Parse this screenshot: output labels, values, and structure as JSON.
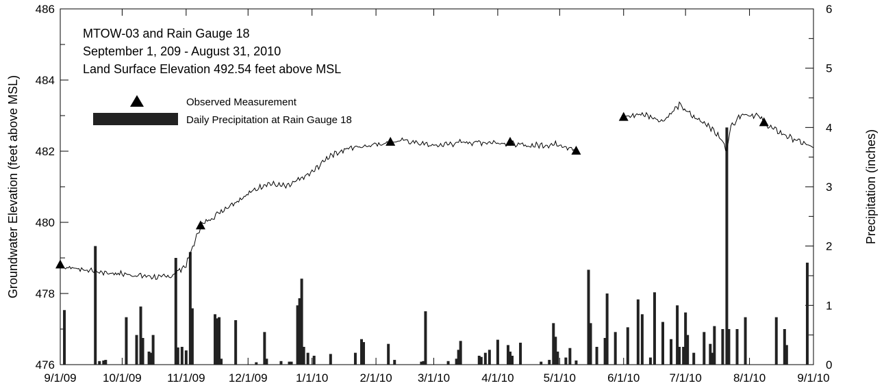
{
  "chart_data": {
    "type": "line",
    "annotations": [
      "MTOW-03 and Rain Gauge 18",
      "September 1, 209 - August 31, 2010",
      "Land Surface Elevation 492.54 feet above MSL"
    ],
    "ylabel": "Groundwater Elevation (feet above MSL)",
    "y2label": "Precipitation (inches)",
    "x_range": [
      "2009-09-01",
      "2010-09-01"
    ],
    "ylim": [
      476,
      486
    ],
    "y2lim": [
      0,
      6
    ],
    "grid": false,
    "legend_position": "top-left",
    "x_tick_labels": [
      "9/1/09",
      "10/1/09",
      "11/1/09",
      "12/1/09",
      "1/1/10",
      "2/1/10",
      "3/1/10",
      "4/1/10",
      "5/1/10",
      "6/1/10",
      "7/1/10",
      "8/1/10",
      "9/1/10"
    ],
    "y_tick_labels": [
      "476",
      "478",
      "480",
      "482",
      "484",
      "486"
    ],
    "y2_tick_labels": [
      "0",
      "1",
      "2",
      "3",
      "4",
      "5",
      "6"
    ],
    "legend": [
      {
        "label": "Observed Measurement",
        "marker": "triangle"
      },
      {
        "label": "Daily Precipitation at Rain Gauge 18",
        "marker": "bar"
      }
    ],
    "series": [
      {
        "name": "Observed Measurement",
        "type": "scatter",
        "points": [
          {
            "x": "2009-09-01",
            "y": 478.8
          },
          {
            "x": "2009-11-08",
            "y": 479.9
          },
          {
            "x": "2010-02-08",
            "y": 482.25
          },
          {
            "x": "2010-04-07",
            "y": 482.25
          },
          {
            "x": "2010-05-09",
            "y": 482.0
          },
          {
            "x": "2010-06-01",
            "y": 482.95
          },
          {
            "x": "2010-08-08",
            "y": 482.8
          }
        ]
      },
      {
        "name": "Groundwater Elevation",
        "type": "line",
        "segments": [
          [
            {
              "x": "2009-09-01",
              "y": 478.75
            },
            {
              "x": "2009-09-10",
              "y": 478.7
            },
            {
              "x": "2009-09-20",
              "y": 478.6
            },
            {
              "x": "2009-10-01",
              "y": 478.55
            },
            {
              "x": "2009-10-10",
              "y": 478.5
            },
            {
              "x": "2009-10-20",
              "y": 478.45
            },
            {
              "x": "2009-10-25",
              "y": 478.5
            },
            {
              "x": "2009-11-01",
              "y": 478.8
            },
            {
              "x": "2009-11-08",
              "y": 479.9
            },
            {
              "x": "2009-11-20",
              "y": 480.4
            },
            {
              "x": "2009-12-01",
              "y": 480.8
            },
            {
              "x": "2009-12-10",
              "y": 481.1
            },
            {
              "x": "2009-12-20",
              "y": 481.0
            },
            {
              "x": "2010-01-01",
              "y": 481.4
            },
            {
              "x": "2010-01-10",
              "y": 481.9
            },
            {
              "x": "2010-01-20",
              "y": 482.1
            },
            {
              "x": "2010-02-01",
              "y": 482.2
            },
            {
              "x": "2010-02-15",
              "y": 482.3
            },
            {
              "x": "2010-03-01",
              "y": 482.15
            },
            {
              "x": "2010-03-15",
              "y": 482.25
            },
            {
              "x": "2010-04-01",
              "y": 482.25
            },
            {
              "x": "2010-04-15",
              "y": 482.15
            },
            {
              "x": "2010-05-01",
              "y": 482.2
            },
            {
              "x": "2010-05-08",
              "y": 482.05
            }
          ],
          [
            {
              "x": "2010-06-01",
              "y": 482.95
            },
            {
              "x": "2010-06-10",
              "y": 483.05
            },
            {
              "x": "2010-06-20",
              "y": 482.85
            },
            {
              "x": "2010-06-28",
              "y": 483.3
            },
            {
              "x": "2010-07-05",
              "y": 482.95
            },
            {
              "x": "2010-07-12",
              "y": 482.75
            },
            {
              "x": "2010-07-18",
              "y": 482.35
            },
            {
              "x": "2010-07-21",
              "y": 482.05
            },
            {
              "x": "2010-07-23",
              "y": 482.7
            },
            {
              "x": "2010-07-28",
              "y": 483.05
            },
            {
              "x": "2010-08-05",
              "y": 483.0
            },
            {
              "x": "2010-08-10",
              "y": 482.7
            },
            {
              "x": "2010-08-20",
              "y": 482.4
            },
            {
              "x": "2010-09-01",
              "y": 482.1
            }
          ]
        ]
      },
      {
        "name": "Daily Precipitation at Rain Gauge 18",
        "type": "bar",
        "axis": "right",
        "points": [
          {
            "x": "2009-09-03",
            "y": 0.92
          },
          {
            "x": "2009-09-18",
            "y": 2.0
          },
          {
            "x": "2009-09-20",
            "y": 0.06
          },
          {
            "x": "2009-09-22",
            "y": 0.07
          },
          {
            "x": "2009-09-23",
            "y": 0.08
          },
          {
            "x": "2009-10-03",
            "y": 0.8
          },
          {
            "x": "2009-10-08",
            "y": 0.5
          },
          {
            "x": "2009-10-10",
            "y": 0.98
          },
          {
            "x": "2009-10-11",
            "y": 0.45
          },
          {
            "x": "2009-10-14",
            "y": 0.22
          },
          {
            "x": "2009-10-15",
            "y": 0.2
          },
          {
            "x": "2009-10-16",
            "y": 0.5
          },
          {
            "x": "2009-10-27",
            "y": 1.8
          },
          {
            "x": "2009-10-28",
            "y": 0.29
          },
          {
            "x": "2009-10-30",
            "y": 0.3
          },
          {
            "x": "2009-11-01",
            "y": 0.24
          },
          {
            "x": "2009-11-03",
            "y": 1.9
          },
          {
            "x": "2009-11-04",
            "y": 0.95
          },
          {
            "x": "2009-11-15",
            "y": 0.85
          },
          {
            "x": "2009-11-16",
            "y": 0.78
          },
          {
            "x": "2009-11-17",
            "y": 0.8
          },
          {
            "x": "2009-11-18",
            "y": 0.1
          },
          {
            "x": "2009-11-25",
            "y": 0.75
          },
          {
            "x": "2009-12-05",
            "y": 0.04
          },
          {
            "x": "2009-12-09",
            "y": 0.55
          },
          {
            "x": "2009-12-10",
            "y": 0.1
          },
          {
            "x": "2009-12-17",
            "y": 0.06
          },
          {
            "x": "2009-12-21",
            "y": 0.05
          },
          {
            "x": "2009-12-22",
            "y": 0.05
          },
          {
            "x": "2009-12-25",
            "y": 1.0
          },
          {
            "x": "2009-12-26",
            "y": 1.12
          },
          {
            "x": "2009-12-27",
            "y": 1.45
          },
          {
            "x": "2009-12-28",
            "y": 0.3
          },
          {
            "x": "2009-12-30",
            "y": 0.2
          },
          {
            "x": "2010-01-02",
            "y": 0.15
          },
          {
            "x": "2010-01-10",
            "y": 0.18
          },
          {
            "x": "2010-01-22",
            "y": 0.2
          },
          {
            "x": "2010-01-25",
            "y": 0.43
          },
          {
            "x": "2010-01-26",
            "y": 0.38
          },
          {
            "x": "2010-02-07",
            "y": 0.35
          },
          {
            "x": "2010-02-10",
            "y": 0.08
          },
          {
            "x": "2010-02-23",
            "y": 0.05
          },
          {
            "x": "2010-02-24",
            "y": 0.06
          },
          {
            "x": "2010-02-25",
            "y": 0.9
          },
          {
            "x": "2010-03-08",
            "y": 0.06
          },
          {
            "x": "2010-03-12",
            "y": 0.1
          },
          {
            "x": "2010-03-13",
            "y": 0.25
          },
          {
            "x": "2010-03-14",
            "y": 0.4
          },
          {
            "x": "2010-03-23",
            "y": 0.15
          },
          {
            "x": "2010-03-24",
            "y": 0.13
          },
          {
            "x": "2010-03-26",
            "y": 0.2
          },
          {
            "x": "2010-03-28",
            "y": 0.25
          },
          {
            "x": "2010-04-01",
            "y": 0.42
          },
          {
            "x": "2010-04-06",
            "y": 0.33
          },
          {
            "x": "2010-04-07",
            "y": 0.22
          },
          {
            "x": "2010-04-08",
            "y": 0.15
          },
          {
            "x": "2010-04-12",
            "y": 0.37
          },
          {
            "x": "2010-04-22",
            "y": 0.05
          },
          {
            "x": "2010-04-26",
            "y": 0.08
          },
          {
            "x": "2010-04-28",
            "y": 0.7
          },
          {
            "x": "2010-04-29",
            "y": 0.47
          },
          {
            "x": "2010-04-30",
            "y": 0.22
          },
          {
            "x": "2010-05-04",
            "y": 0.12
          },
          {
            "x": "2010-05-06",
            "y": 0.28
          },
          {
            "x": "2010-05-09",
            "y": 0.07
          },
          {
            "x": "2010-05-15",
            "y": 1.6
          },
          {
            "x": "2010-05-16",
            "y": 0.7
          },
          {
            "x": "2010-05-19",
            "y": 0.3
          },
          {
            "x": "2010-05-23",
            "y": 0.45
          },
          {
            "x": "2010-05-24",
            "y": 1.2
          },
          {
            "x": "2010-05-28",
            "y": 0.55
          },
          {
            "x": "2010-06-03",
            "y": 0.63
          },
          {
            "x": "2010-06-08",
            "y": 1.1
          },
          {
            "x": "2010-06-10",
            "y": 0.85
          },
          {
            "x": "2010-06-14",
            "y": 0.12
          },
          {
            "x": "2010-06-16",
            "y": 1.22
          },
          {
            "x": "2010-06-20",
            "y": 0.72
          },
          {
            "x": "2010-06-24",
            "y": 0.43
          },
          {
            "x": "2010-06-27",
            "y": 1.0
          },
          {
            "x": "2010-06-28",
            "y": 0.3
          },
          {
            "x": "2010-06-30",
            "y": 0.3
          },
          {
            "x": "2010-07-01",
            "y": 0.88
          },
          {
            "x": "2010-07-02",
            "y": 0.5
          },
          {
            "x": "2010-07-05",
            "y": 0.2
          },
          {
            "x": "2010-07-10",
            "y": 0.55
          },
          {
            "x": "2010-07-13",
            "y": 0.35
          },
          {
            "x": "2010-07-14",
            "y": 0.2
          },
          {
            "x": "2010-07-15",
            "y": 0.65
          },
          {
            "x": "2010-07-19",
            "y": 0.6
          },
          {
            "x": "2010-07-21",
            "y": 4.0
          },
          {
            "x": "2010-07-22",
            "y": 0.6
          },
          {
            "x": "2010-07-26",
            "y": 0.6
          },
          {
            "x": "2010-07-30",
            "y": 0.8
          },
          {
            "x": "2010-08-14",
            "y": 0.8
          },
          {
            "x": "2010-08-18",
            "y": 0.6
          },
          {
            "x": "2010-08-19",
            "y": 0.33
          },
          {
            "x": "2010-08-29",
            "y": 1.72
          }
        ]
      }
    ]
  }
}
